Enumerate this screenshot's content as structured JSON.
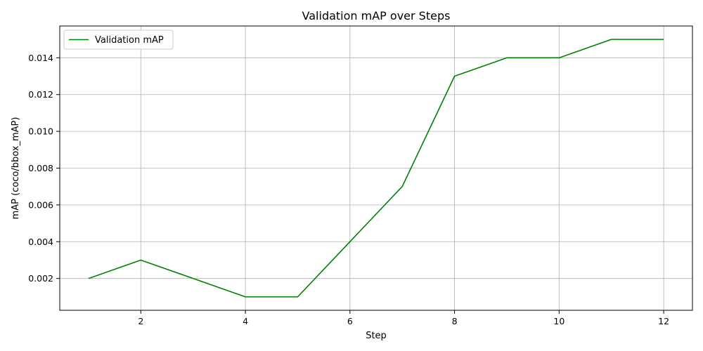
{
  "chart_data": {
    "type": "line",
    "title": "Validation mAP over Steps",
    "xlabel": "Step",
    "ylabel": "mAP (coco/bbox_mAP)",
    "xlim": [
      0.45,
      12.55
    ],
    "ylim": [
      0.00027,
      0.01573
    ],
    "xticks": [
      2,
      4,
      6,
      8,
      10,
      12
    ],
    "yticks": [
      0.002,
      0.004,
      0.006,
      0.008,
      0.01,
      0.012,
      0.014
    ],
    "ytick_labels": [
      "0.002",
      "0.004",
      "0.006",
      "0.008",
      "0.010",
      "0.012",
      "0.014"
    ],
    "grid": true,
    "legend_position": "top-left",
    "series": [
      {
        "name": "Validation mAP",
        "color": "#008000",
        "x": [
          1,
          2,
          3,
          4,
          5,
          6,
          7,
          8,
          9,
          10,
          11,
          12
        ],
        "y": [
          0.002,
          0.003,
          0.002,
          0.001,
          0.001,
          0.004,
          0.007,
          0.013,
          0.014,
          0.014,
          0.015,
          0.015
        ]
      }
    ]
  }
}
